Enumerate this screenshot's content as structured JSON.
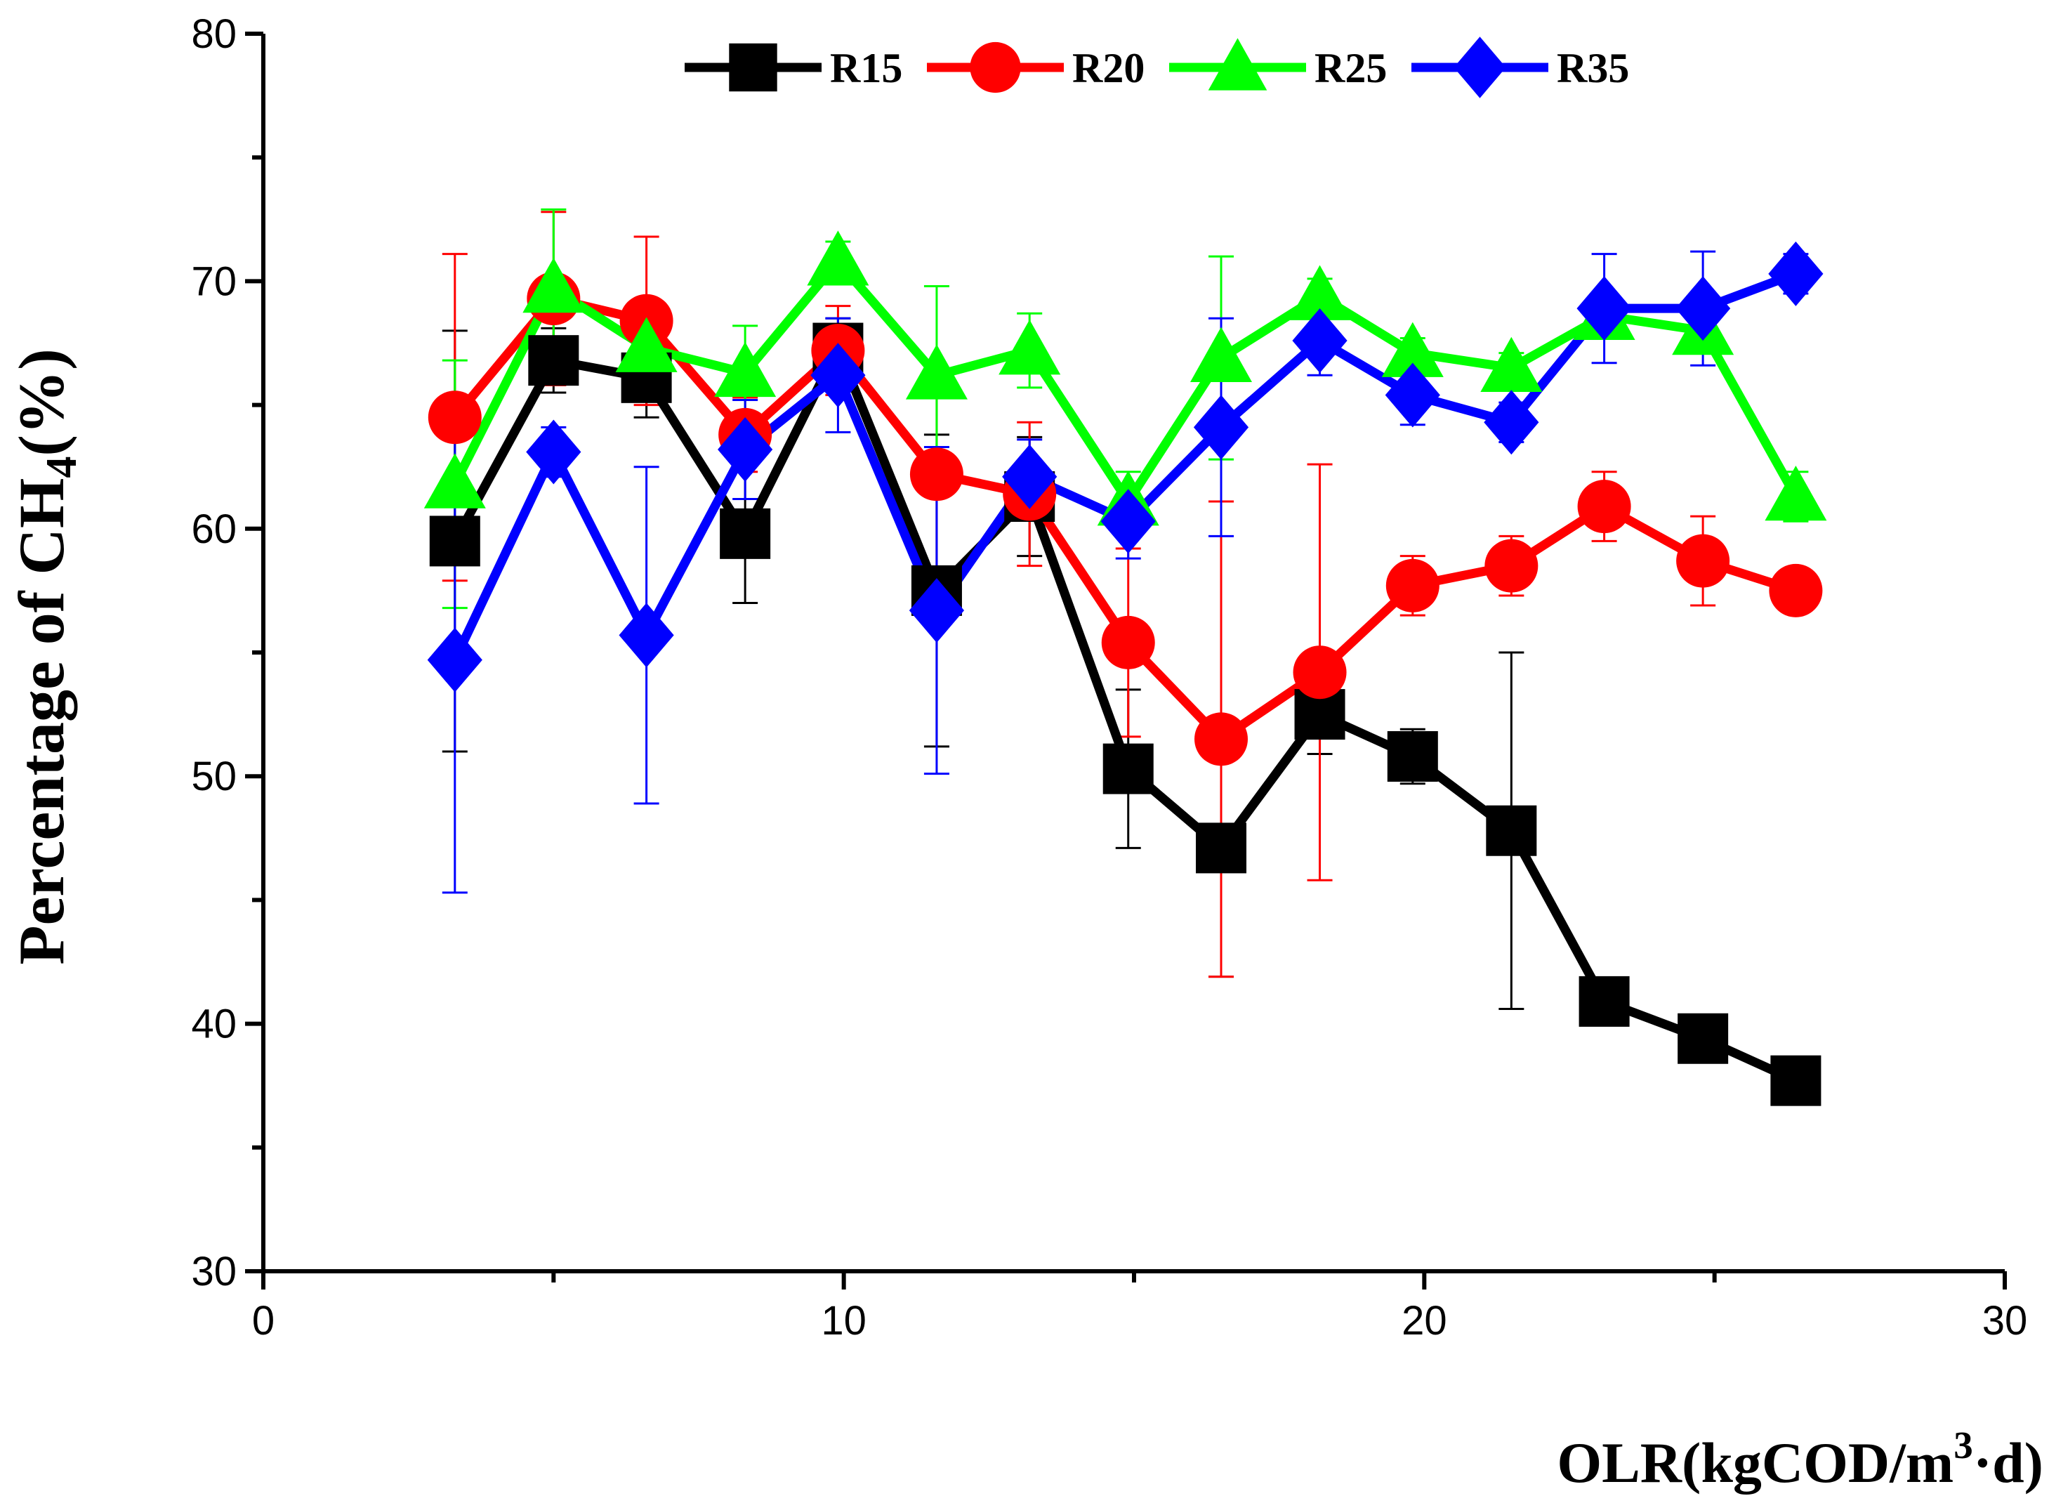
{
  "chart_data": {
    "type": "line",
    "title": "",
    "xlabel": {
      "main": "OLR(kgCOD/m",
      "sup": "3",
      "tail": "·d)"
    },
    "ylabel": {
      "main": "Percentage of CH",
      "sub": "4",
      "tail": "(%)"
    },
    "xlim": [
      0,
      30
    ],
    "ylim": [
      30,
      80
    ],
    "xticks": [
      0,
      10,
      20,
      30
    ],
    "yticks": [
      30,
      40,
      50,
      60,
      70,
      80
    ],
    "legend_position": "top",
    "x": [
      3.3,
      5.0,
      6.6,
      8.3,
      9.9,
      11.6,
      13.2,
      14.9,
      16.5,
      18.2,
      19.8,
      21.5,
      23.1,
      24.8,
      26.4
    ],
    "series": [
      {
        "name": "R15",
        "color": "#000000",
        "marker": "square",
        "values": [
          59.5,
          66.8,
          66.1,
          59.8,
          67.3,
          57.5,
          61.3,
          50.3,
          47.1,
          52.5,
          50.8,
          47.8,
          40.9,
          39.4,
          37.7
        ],
        "errors": [
          8.5,
          1.3,
          1.6,
          2.8,
          1.2,
          6.3,
          2.4,
          3.2,
          5.2,
          1.6,
          1.1,
          7.2,
          0.4,
          0.6,
          0.7
        ]
      },
      {
        "name": "R20",
        "color": "#ff0000",
        "marker": "circle",
        "values": [
          64.5,
          69.3,
          68.4,
          63.8,
          67.2,
          62.2,
          61.4,
          55.4,
          51.5,
          54.2,
          57.7,
          58.5,
          60.9,
          58.7,
          57.5
        ],
        "errors": [
          6.6,
          3.5,
          3.4,
          1.5,
          1.8,
          4.0,
          2.9,
          3.8,
          9.6,
          8.4,
          1.2,
          1.2,
          1.4,
          1.8,
          0.8
        ]
      },
      {
        "name": "R25",
        "color": "#00ff00",
        "marker": "triangle",
        "values": [
          61.8,
          69.7,
          67.3,
          66.3,
          70.8,
          66.2,
          67.2,
          61.1,
          66.9,
          69.4,
          67.1,
          66.5,
          68.6,
          68.0,
          61.3
        ],
        "errors": [
          5.0,
          3.2,
          1.3,
          1.9,
          0.8,
          3.6,
          1.5,
          1.2,
          4.1,
          0.7,
          0.6,
          0.6,
          0.5,
          0.8,
          1.0
        ]
      },
      {
        "name": "R35",
        "color": "#0000ff",
        "marker": "diamond",
        "values": [
          54.7,
          63.1,
          55.7,
          63.2,
          66.2,
          56.7,
          62.1,
          60.3,
          64.1,
          67.6,
          65.4,
          64.3,
          68.9,
          68.9,
          70.3
        ],
        "errors": [
          9.4,
          1.0,
          6.8,
          2.0,
          2.3,
          6.6,
          1.5,
          1.5,
          4.4,
          1.4,
          1.2,
          0.8,
          2.2,
          2.3,
          0.8
        ]
      }
    ]
  }
}
